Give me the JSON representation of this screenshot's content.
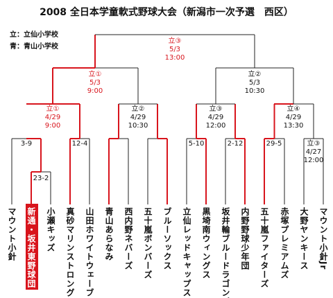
{
  "header": {
    "title": "2008 全日本学童軟式野球大会（新潟市一次予選　西区）"
  },
  "legend": [
    "立：立仙小学校",
    "青：青山小学校"
  ],
  "matches": [
    {
      "lines": [
        "立③",
        "5/3",
        "13:00"
      ]
    },
    {
      "lines": [
        "立①",
        "5/3",
        "9:00"
      ]
    },
    {
      "lines": [
        "立②",
        "5/3",
        "10:30"
      ]
    },
    {
      "lines": [
        "立①",
        "4/29",
        "9:00"
      ]
    },
    {
      "lines": [
        "立②",
        "4/29",
        "10:30"
      ]
    },
    {
      "lines": [
        "立③",
        "4/29",
        "12:00"
      ]
    },
    {
      "lines": [
        "立④",
        "4/29",
        "13:30"
      ]
    },
    {
      "lines": [
        "立③",
        "4/27",
        "12:00"
      ]
    }
  ],
  "scores": [
    "23-2",
    "3-9",
    "12-4",
    "5-10",
    "2-12",
    "29-5"
  ],
  "teams": [
    "マウント小針",
    "新通・坂井東野球団",
    "小瀬キッズ",
    "真砂マリンストロング",
    "山田ホワイトウェーブ",
    "青山あらなみ",
    "西内野ネバーズ",
    "五十嵐ボンバーズ",
    "ブルーソックス",
    "立仙レッドキャップス",
    "黒埼南ウィングス",
    "坂井輪ブルードラゴンズ",
    "内野野球少年団",
    "五十嵐ファイターズ",
    "赤塚プレミアムズ",
    "大野ヤンキース",
    "マウント小針Jr"
  ]
}
